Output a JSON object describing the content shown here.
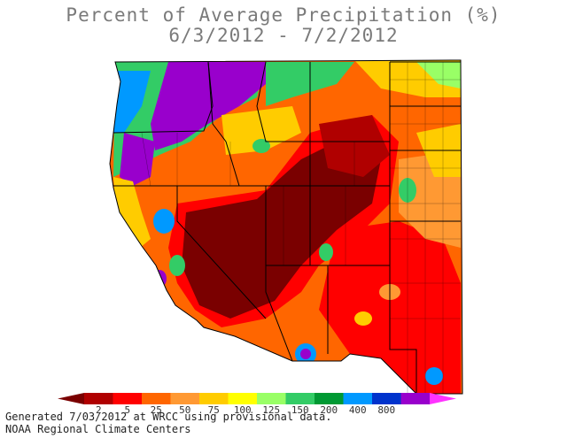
{
  "title": {
    "line1": "Percent of Average Precipitation (%)",
    "line2": "6/3/2012 - 7/2/2012"
  },
  "legend": {
    "ticks": [
      "2",
      "5",
      "25",
      "50",
      "75",
      "100",
      "125",
      "150",
      "200",
      "400",
      "800"
    ],
    "colors": [
      "#7a0000",
      "#b00000",
      "#ff0000",
      "#ff6600",
      "#ff9933",
      "#ffcc00",
      "#ffff00",
      "#99ff66",
      "#33cc66",
      "#009933",
      "#0099ff",
      "#0033cc",
      "#9900cc",
      "#ff33ff"
    ]
  },
  "footer": {
    "line1": "Generated 7/03/2012 at WRCC using provisional data.",
    "line2": "NOAA Regional Climate Centers"
  }
}
